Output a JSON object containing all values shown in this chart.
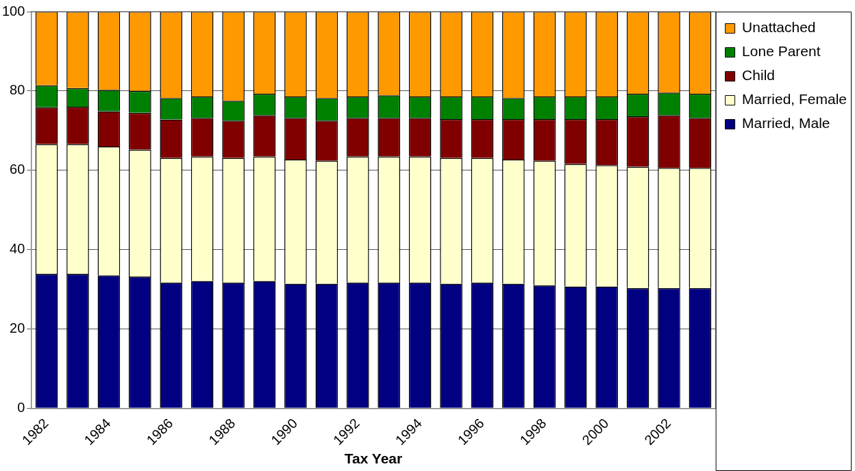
{
  "chart_data": {
    "type": "bar",
    "stacked": true,
    "xlabel": "Tax Year",
    "categories": [
      "1982",
      null,
      "1984",
      null,
      "1986",
      null,
      "1988",
      null,
      "1990",
      null,
      "1992",
      null,
      "1994",
      null,
      "1996",
      null,
      "1998",
      null,
      "2000",
      null,
      "2002",
      null
    ],
    "series": [
      {
        "name": "Married, Male",
        "color": "#000080",
        "values": [
          33.9,
          33.9,
          33.5,
          33.2,
          31.7,
          32.1,
          31.7,
          32.1,
          31.4,
          31.4,
          31.7,
          31.7,
          31.7,
          31.4,
          31.7,
          31.4,
          31.0,
          30.7,
          30.7,
          30.3,
          30.3,
          30.3
        ]
      },
      {
        "name": "Married, Female",
        "color": "#ffffcc",
        "values": [
          32.7,
          32.7,
          32.5,
          32.0,
          31.4,
          31.4,
          31.4,
          31.4,
          31.3,
          31.0,
          31.8,
          31.8,
          31.8,
          31.7,
          31.4,
          31.3,
          31.4,
          30.9,
          30.6,
          30.6,
          30.3,
          30.3
        ]
      },
      {
        "name": "Child",
        "color": "#800000",
        "values": [
          9.3,
          9.4,
          8.9,
          9.3,
          9.7,
          9.7,
          9.4,
          10.4,
          10.5,
          10.1,
          9.7,
          9.7,
          9.7,
          9.8,
          9.8,
          10.2,
          10.5,
          11.3,
          11.6,
          12.7,
          13.3,
          12.6
        ]
      },
      {
        "name": "Lone Parent",
        "color": "#008000",
        "values": [
          5.5,
          4.7,
          5.4,
          5.5,
          5.4,
          5.4,
          5.0,
          5.4,
          5.4,
          5.7,
          5.4,
          5.7,
          5.4,
          5.7,
          5.7,
          5.3,
          5.7,
          5.7,
          5.7,
          5.7,
          5.7,
          6.1
        ]
      },
      {
        "name": "Unattached",
        "color": "#ff9900",
        "values": [
          18.6,
          19.3,
          19.7,
          20.0,
          21.8,
          21.4,
          22.5,
          20.7,
          21.4,
          21.8,
          21.4,
          21.1,
          21.4,
          21.4,
          21.4,
          21.8,
          21.4,
          21.4,
          21.4,
          20.7,
          20.4,
          20.7
        ]
      }
    ],
    "ylim": [
      0,
      100
    ],
    "yticks": [
      0,
      20,
      40,
      60,
      80,
      100
    ],
    "grid": "y",
    "legend": "top right"
  }
}
